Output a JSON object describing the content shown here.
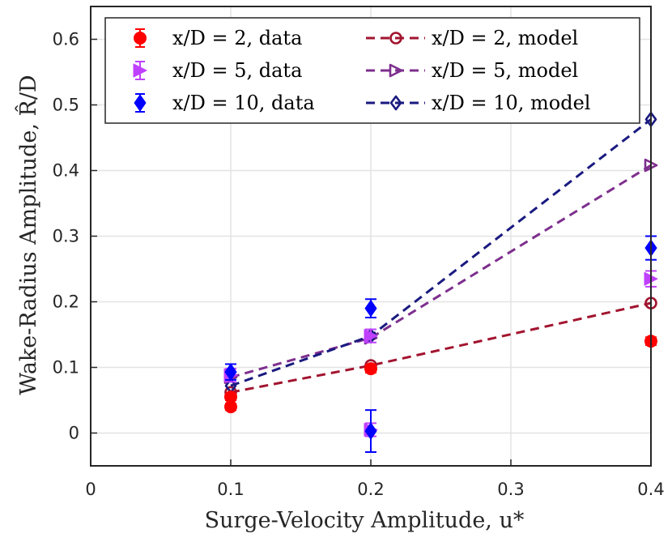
{
  "chart_data": {
    "type": "scatter",
    "title": "",
    "xlabel": "Surge-Velocity Amplitude, u*",
    "ylabel": "Wake-Radius Amplitude, R̂/D",
    "xlim": [
      0,
      0.4
    ],
    "ylim": [
      -0.05,
      0.65
    ],
    "xticks": [
      "0",
      "0.1",
      "0.2",
      "0.3",
      "0.4"
    ],
    "yticks": [
      "0",
      "0.1",
      "0.2",
      "0.3",
      "0.4",
      "0.5",
      "0.6"
    ],
    "grid": true,
    "legend_position": "top-right",
    "series": [
      {
        "name": "x/D = 2, data",
        "kind": "data",
        "xd": "2",
        "label_suffix": "data",
        "marker": "circle-filled",
        "color": "#ff0000",
        "points": [
          {
            "x": 0.1,
            "y": 0.04,
            "err": 0.005
          },
          {
            "x": 0.1,
            "y": 0.055,
            "err": 0.005
          },
          {
            "x": 0.2,
            "y": 0.098,
            "err": 0.006
          },
          {
            "x": 0.4,
            "y": 0.14,
            "err": 0.006
          }
        ]
      },
      {
        "name": "x/D = 5, data",
        "kind": "data",
        "xd": "5",
        "label_suffix": "data",
        "marker": "triangle-right-filled",
        "color": "#bf40ff",
        "points": [
          {
            "x": 0.1,
            "y": 0.088,
            "err": 0.01
          },
          {
            "x": 0.2,
            "y": 0.148,
            "err": 0.01
          },
          {
            "x": 0.2,
            "y": 0.005,
            "err": 0.01
          },
          {
            "x": 0.4,
            "y": 0.235,
            "err": 0.012
          }
        ]
      },
      {
        "name": "x/D = 10, data",
        "kind": "data",
        "xd": "10",
        "label_suffix": "data",
        "marker": "diamond-filled",
        "color": "#0000ff",
        "points": [
          {
            "x": 0.1,
            "y": 0.093,
            "err": 0.012
          },
          {
            "x": 0.2,
            "y": 0.19,
            "err": 0.014
          },
          {
            "x": 0.2,
            "y": 0.003,
            "err": 0.032
          },
          {
            "x": 0.4,
            "y": 0.282,
            "err": 0.018
          }
        ]
      },
      {
        "name": "x/D = 2, model",
        "kind": "model",
        "xd": "2",
        "label_suffix": "model",
        "marker": "circle-open",
        "color": "#a2142f",
        "points": [
          {
            "x": 0.1,
            "y": 0.062
          },
          {
            "x": 0.2,
            "y": 0.103
          },
          {
            "x": 0.4,
            "y": 0.198
          }
        ]
      },
      {
        "name": "x/D = 5, model",
        "kind": "model",
        "xd": "5",
        "label_suffix": "model",
        "marker": "triangle-right-open",
        "color": "#7e2f8e",
        "points": [
          {
            "x": 0.1,
            "y": 0.085
          },
          {
            "x": 0.2,
            "y": 0.145
          },
          {
            "x": 0.4,
            "y": 0.408
          }
        ]
      },
      {
        "name": "x/D = 10, model",
        "kind": "model",
        "xd": "10",
        "label_suffix": "model",
        "marker": "diamond-open",
        "color": "#1a1a80",
        "points": [
          {
            "x": 0.1,
            "y": 0.072
          },
          {
            "x": 0.2,
            "y": 0.148
          },
          {
            "x": 0.4,
            "y": 0.478
          }
        ]
      }
    ]
  }
}
